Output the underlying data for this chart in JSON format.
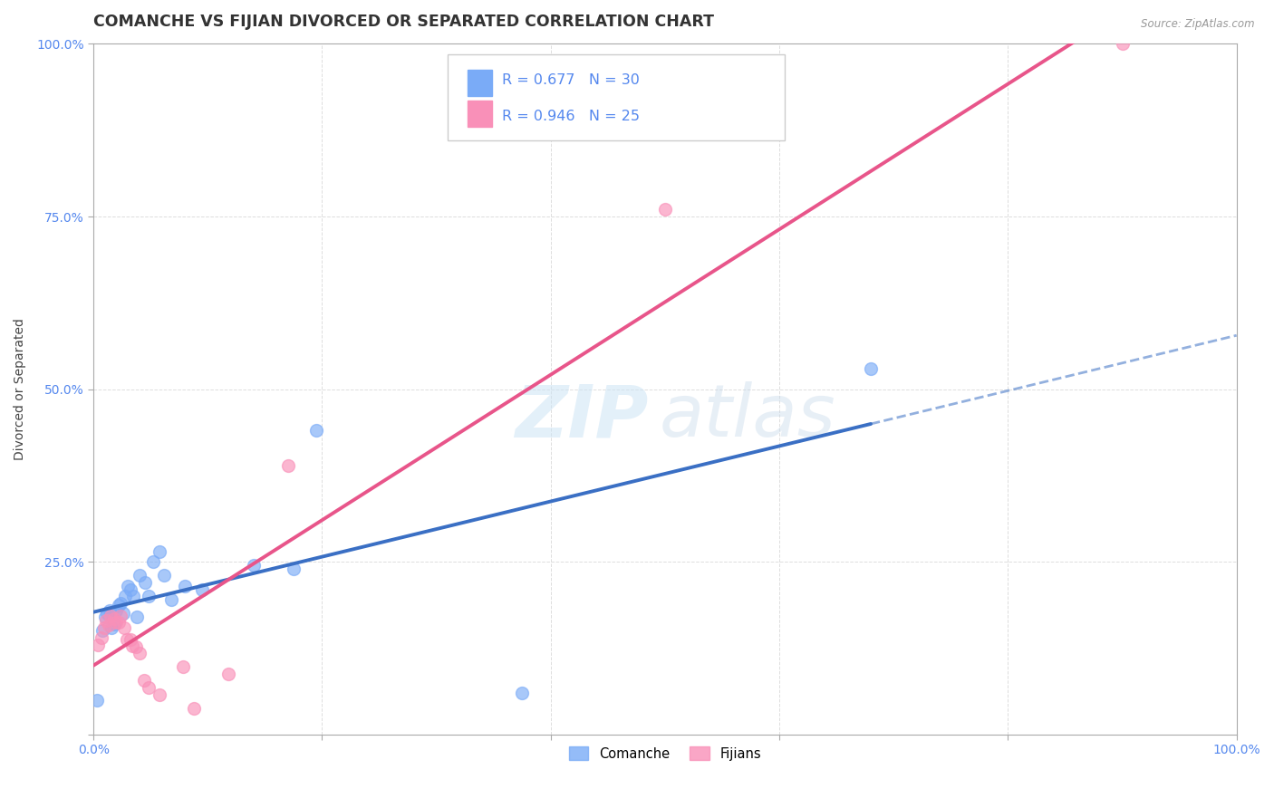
{
  "title": "COMANCHE VS FIJIAN DIVORCED OR SEPARATED CORRELATION CHART",
  "source": "Source: ZipAtlas.com",
  "ylabel": "Divorced or Separated",
  "xlim": [
    0.0,
    1.0
  ],
  "ylim": [
    0.0,
    1.0
  ],
  "legend_blue_r": "R = 0.677",
  "legend_blue_n": "N = 30",
  "legend_pink_r": "R = 0.946",
  "legend_pink_n": "N = 25",
  "comanche_color": "#7aabf7",
  "fijian_color": "#f990b8",
  "trendline_blue_color": "#3a6fc4",
  "trendline_pink_color": "#e8558a",
  "watermark_zip": "ZIP",
  "watermark_atlas": "atlas",
  "comanche_x": [
    0.003,
    0.008,
    0.01,
    0.012,
    0.014,
    0.016,
    0.018,
    0.02,
    0.022,
    0.024,
    0.026,
    0.028,
    0.03,
    0.032,
    0.035,
    0.038,
    0.04,
    0.045,
    0.048,
    0.052,
    0.058,
    0.062,
    0.068,
    0.08,
    0.095,
    0.14,
    0.175,
    0.195,
    0.375,
    0.68
  ],
  "comanche_y": [
    0.05,
    0.15,
    0.17,
    0.175,
    0.18,
    0.155,
    0.16,
    0.18,
    0.188,
    0.19,
    0.175,
    0.2,
    0.215,
    0.21,
    0.2,
    0.17,
    0.23,
    0.22,
    0.2,
    0.25,
    0.265,
    0.23,
    0.195,
    0.215,
    0.21,
    0.245,
    0.24,
    0.44,
    0.06,
    0.53
  ],
  "fijian_x": [
    0.004,
    0.007,
    0.009,
    0.011,
    0.013,
    0.015,
    0.018,
    0.02,
    0.022,
    0.024,
    0.027,
    0.029,
    0.032,
    0.034,
    0.037,
    0.04,
    0.044,
    0.048,
    0.058,
    0.078,
    0.088,
    0.118,
    0.17,
    0.5,
    0.9
  ],
  "fijian_y": [
    0.13,
    0.14,
    0.155,
    0.165,
    0.158,
    0.172,
    0.168,
    0.162,
    0.163,
    0.172,
    0.155,
    0.138,
    0.138,
    0.128,
    0.127,
    0.118,
    0.078,
    0.068,
    0.058,
    0.098,
    0.038,
    0.088,
    0.39,
    0.76,
    1.0
  ],
  "grid_color": "#dddddd",
  "background_color": "#ffffff",
  "axis_color": "#aaaaaa",
  "tick_color": "#5588ee",
  "title_fontsize": 12.5,
  "label_fontsize": 10,
  "tick_fontsize": 10,
  "legend_fontsize": 11.5
}
